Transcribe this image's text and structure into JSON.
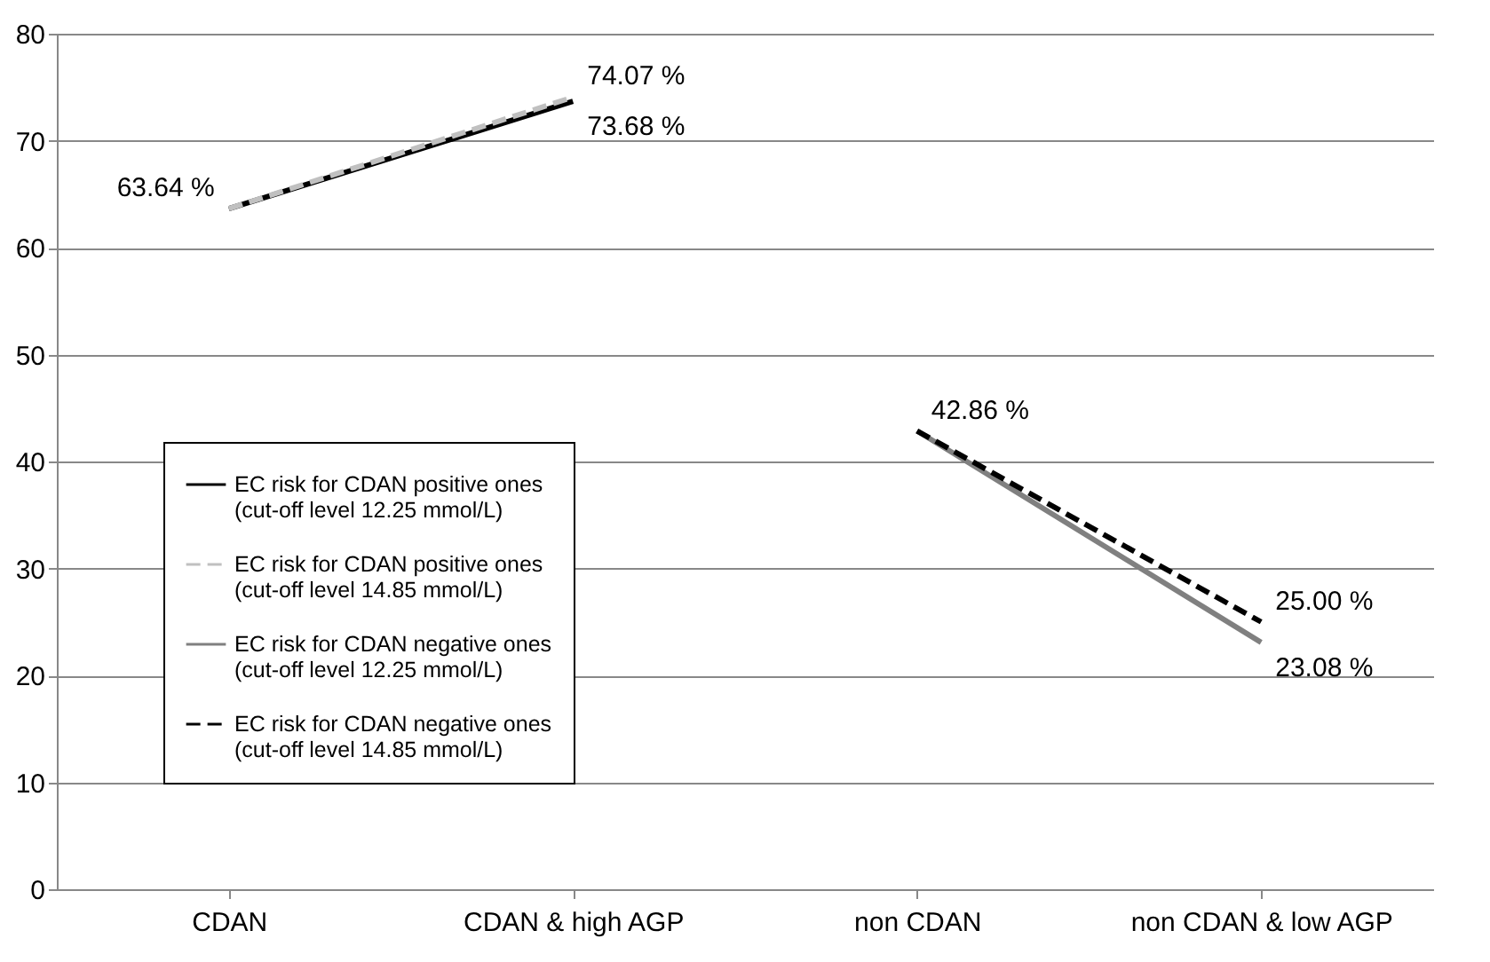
{
  "chart_data": {
    "type": "line",
    "categories": [
      "CDAN",
      "CDAN & high AGP",
      "non CDAN",
      "non CDAN & low AGP"
    ],
    "series": [
      {
        "name": "EC risk for CDAN positive ones (cut-off level 12.25 mmol/L)",
        "color": "#000000",
        "line_style": "solid",
        "values": [
          63.64,
          73.68,
          null,
          null
        ],
        "value_labels": [
          "63.64 %",
          "73.68 %",
          null,
          null
        ]
      },
      {
        "name": "EC risk for CDAN positive ones (cut-off level 14.85 mmol/L)",
        "color": "#c0c0c0",
        "line_style": "dashed",
        "values": [
          63.64,
          74.07,
          null,
          null
        ],
        "value_labels": [
          null,
          "74.07 %",
          null,
          null
        ]
      },
      {
        "name": "EC risk for CDAN negative ones (cut-off level 12.25 mmol/L)",
        "color": "#808080",
        "line_style": "solid",
        "values": [
          null,
          null,
          42.86,
          23.08
        ],
        "value_labels": [
          null,
          null,
          "42.86 %",
          "23.08 %"
        ]
      },
      {
        "name": "EC risk for CDAN negative ones (cut-off level 14.85 mmol/L)",
        "color": "#000000",
        "line_style": "dashed",
        "values": [
          null,
          null,
          42.86,
          25.0
        ],
        "value_labels": [
          null,
          null,
          null,
          "25.00 %"
        ]
      }
    ],
    "ylim": [
      0,
      80
    ],
    "yticks": [
      0,
      10,
      20,
      30,
      40,
      50,
      60,
      70,
      80
    ],
    "grid": "y",
    "legend": "bottom left",
    "marker": "none"
  }
}
